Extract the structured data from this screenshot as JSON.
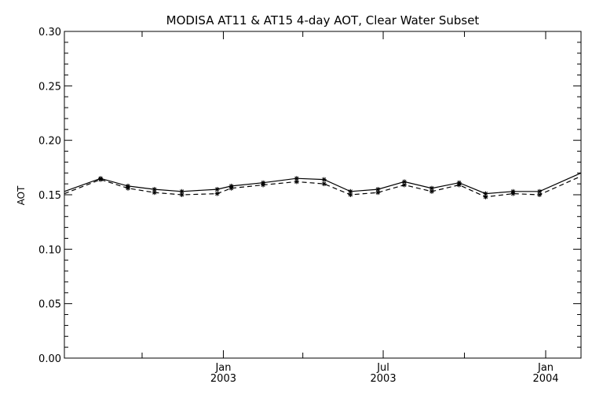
{
  "chart_data": {
    "type": "line",
    "title": "MODISA AT11 & AT15 4-day AOT, Clear Water Subset",
    "xlabel": "",
    "ylabel": "AOT",
    "ylim": [
      0.0,
      0.3
    ],
    "yticks": [
      "0.00",
      "0.05",
      "0.10",
      "0.15",
      "0.20",
      "0.25",
      "0.30"
    ],
    "xlim": [
      "2002-07-05",
      "2004-02-10"
    ],
    "xticks": [
      {
        "month": "Jan",
        "year": "2003",
        "date": "2003-01-01"
      },
      {
        "month": "Jul",
        "year": "2003",
        "date": "2003-07-01"
      },
      {
        "month": "Jan",
        "year": "2004",
        "date": "2004-01-01"
      }
    ],
    "grid": false,
    "series": [
      {
        "style": "solid",
        "x": [
          "2002-07-05",
          "2002-08-15",
          "2002-09-15",
          "2002-10-15",
          "2002-11-15",
          "2002-12-25",
          "2003-01-10",
          "2003-02-15",
          "2003-03-25",
          "2003-04-25",
          "2003-05-25",
          "2003-06-25",
          "2003-07-25",
          "2003-08-25",
          "2003-09-25",
          "2003-10-25",
          "2003-11-25",
          "2003-12-25",
          "2004-02-10"
        ],
        "values": [
          0.153,
          0.165,
          0.158,
          0.155,
          0.153,
          0.155,
          0.158,
          0.161,
          0.165,
          0.164,
          0.153,
          0.155,
          0.162,
          0.156,
          0.161,
          0.151,
          0.153,
          0.153,
          0.17
        ]
      },
      {
        "style": "dashed",
        "x": [
          "2002-07-05",
          "2002-08-15",
          "2002-09-15",
          "2002-10-15",
          "2002-11-15",
          "2002-12-25",
          "2003-01-10",
          "2003-02-15",
          "2003-03-25",
          "2003-04-25",
          "2003-05-25",
          "2003-06-25",
          "2003-07-25",
          "2003-08-25",
          "2003-09-25",
          "2003-10-25",
          "2003-11-25",
          "2003-12-25",
          "2004-02-10"
        ],
        "values": [
          0.151,
          0.164,
          0.156,
          0.152,
          0.15,
          0.151,
          0.156,
          0.159,
          0.162,
          0.16,
          0.15,
          0.152,
          0.159,
          0.153,
          0.159,
          0.148,
          0.151,
          0.15,
          0.167
        ]
      }
    ]
  }
}
